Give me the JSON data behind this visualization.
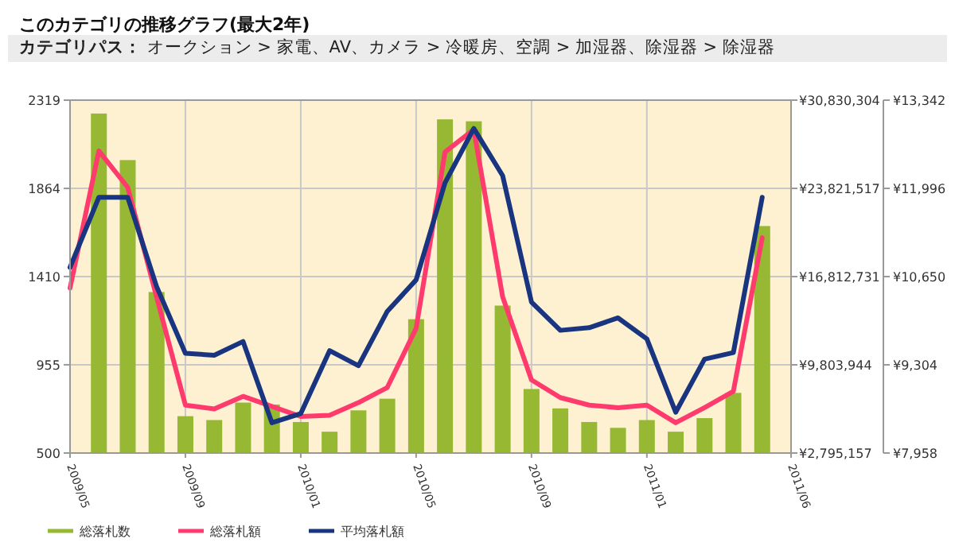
{
  "chart_data": {
    "type": "bar",
    "title": "このカテゴリの推移グラフ(最大2年)",
    "subtitle": "**カテゴリパス：** オークション > 家電、AV、カメラ > 冷暖房、空調 > 加湿器、除湿器 > 除湿器",
    "x": [
      "2009-05",
      "2009-06",
      "2009-07",
      "2009-08",
      "2009-09",
      "2009-10",
      "2009-11",
      "2009-12",
      "2010-01",
      "2010-02",
      "2010-03",
      "2010-04",
      "2010-05",
      "2010-06",
      "2010-07",
      "2010-08",
      "2010-09",
      "2010-10",
      "2010-11",
      "2010-12",
      "2011-01",
      "2011-02",
      "2011-03",
      "2011-04",
      "2011-05"
    ],
    "xlim": [
      "2009-05",
      "2011-06"
    ],
    "xticks": [
      {
        "value": "2009-05",
        "label": "2009/05"
      },
      {
        "value": "2009-09",
        "label": "2009/09"
      },
      {
        "value": "2010-01",
        "label": "2010/01"
      },
      {
        "value": "2010-05",
        "label": "2010/05"
      },
      {
        "value": "2010-09",
        "label": "2010/09"
      },
      {
        "value": "2011-01",
        "label": "2011/01"
      },
      {
        "value": "2011-06",
        "label": "2011/06"
      }
    ],
    "ylim": [
      500,
      2319
    ],
    "yticks": [
      500,
      955,
      1410,
      1864,
      2319
    ],
    "y2lim": [
      2795157,
      30830304
    ],
    "y2ticks": [
      {
        "value": 2795157,
        "label": "¥2,795,157"
      },
      {
        "value": 9803944,
        "label": "¥9,803,944"
      },
      {
        "value": 16812731,
        "label": "¥16,812,731"
      },
      {
        "value": 23821517,
        "label": "¥23,821,517"
      },
      {
        "value": 30830304,
        "label": "¥30,830,304"
      }
    ],
    "y3lim": [
      7958,
      13342
    ],
    "y3ticks": [
      {
        "value": 7958,
        "label": "¥7,958"
      },
      {
        "value": 9304,
        "label": "¥9,304"
      },
      {
        "value": 10650,
        "label": "¥10,650"
      },
      {
        "value": 11996,
        "label": "¥11,996"
      },
      {
        "value": 13342,
        "label": "¥13,342"
      }
    ],
    "grid": true,
    "legend": "bottom",
    "series": [
      {
        "name": "総落札数",
        "color": "#96b832",
        "values": [
          null,
          2250,
          2010,
          1330,
          690,
          670,
          760,
          750,
          660,
          610,
          720,
          780,
          1190,
          2220,
          2210,
          1260,
          830,
          730,
          660,
          630,
          670,
          610,
          680,
          810,
          1670
        ]
      },
      {
        "name": "総落札額",
        "type": "line",
        "axis": "y2",
        "color": "#ff3b6e",
        "values": [
          15900000,
          26800000,
          23900000,
          15200000,
          6600000,
          6300000,
          7300000,
          6500000,
          5700000,
          5800000,
          6800000,
          8000000,
          12700000,
          26700000,
          28500000,
          15200000,
          8600000,
          7200000,
          6600000,
          6400000,
          6600000,
          5200000,
          6400000,
          7700000,
          19900000
        ]
      },
      {
        "name": "平均落札額",
        "type": "line",
        "axis": "y3",
        "color": "#1a3580",
        "values": [
          10790,
          11860,
          11860,
          10500,
          9480,
          9450,
          9660,
          8420,
          8560,
          9520,
          9290,
          10120,
          10600,
          12080,
          12910,
          12190,
          10260,
          9830,
          9870,
          10020,
          9700,
          8580,
          9390,
          9490,
          11860
        ]
      }
    ]
  }
}
